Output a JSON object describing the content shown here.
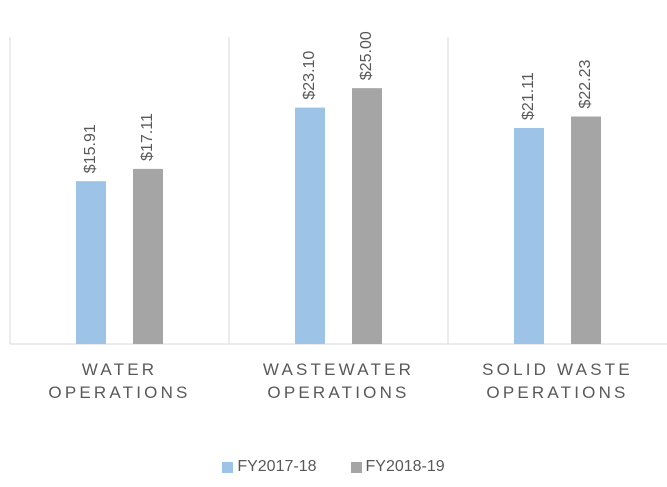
{
  "chart_data": {
    "type": "bar",
    "categories": [
      "WATER OPERATIONS",
      "WASTEWATER OPERATIONS",
      "SOLID WASTE OPERATIONS"
    ],
    "series": [
      {
        "name": "FY2017-18",
        "color": "#9dc3e6",
        "values": [
          15.91,
          23.1,
          21.11
        ],
        "value_labels": [
          "$15.91",
          "$23.10",
          "$21.11"
        ]
      },
      {
        "name": "FY2018-19",
        "color": "#a5a5a5",
        "values": [
          17.11,
          25.0,
          22.23
        ],
        "value_labels": [
          "$17.11",
          "$25.00",
          "$22.23"
        ]
      }
    ],
    "ylim": [
      0,
      30
    ],
    "legend": "bottom"
  }
}
